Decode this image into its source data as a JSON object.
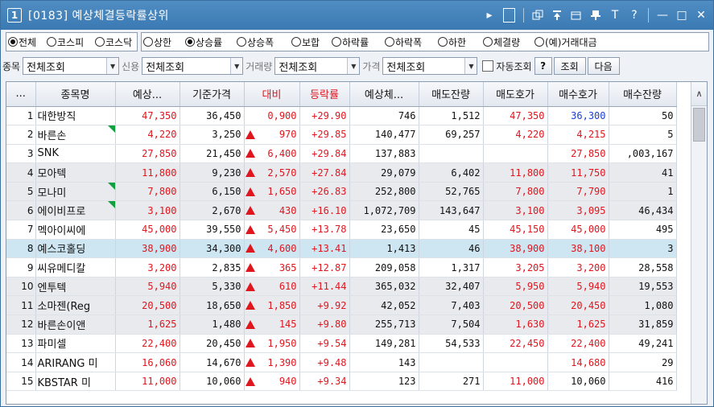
{
  "title": {
    "badge": "1",
    "text": "[0183]  예상체결등락률상위"
  },
  "title_tools": [
    "▸",
    "T",
    "?",
    "—",
    "□",
    "✕"
  ],
  "radio_groups": [
    [
      {
        "label": "전체",
        "checked": true
      },
      {
        "label": "코스피",
        "checked": false
      },
      {
        "label": "코스닥",
        "checked": false
      }
    ],
    [
      {
        "label": "상한",
        "checked": false
      },
      {
        "label": "상승률",
        "checked": true
      },
      {
        "label": "상승폭",
        "checked": false
      },
      {
        "label": "보합",
        "checked": false
      },
      {
        "label": "하락률",
        "checked": false
      },
      {
        "label": "하락폭",
        "checked": false
      },
      {
        "label": "하한",
        "checked": false
      },
      {
        "label": "체결량",
        "checked": false
      },
      {
        "label": "(예)거래대금",
        "checked": false
      }
    ]
  ],
  "filters": {
    "item_label": "종목",
    "item_value": "전체조회",
    "credit_label": "신용",
    "credit_value": "전체조회",
    "volume_label": "거래량",
    "volume_value": "전체조회",
    "price_label": "가격",
    "price_value": "전체조회",
    "auto_label": "자동조회",
    "help_button": "?",
    "search_button": "조회",
    "next_button": "다음"
  },
  "table": {
    "headers": [
      "...",
      "종목명",
      "예상...",
      "기준가격",
      "대비",
      "등락률",
      "예상체...",
      "매도잔량",
      "매도호가",
      "매수호가",
      "매수잔량"
    ],
    "rows": [
      {
        "no": "1",
        "name": "대한방직",
        "exp": "47,350",
        "base": "36,450",
        "diff": "0,900",
        "up": false,
        "rate": "+29.90",
        "vol": "746",
        "askq": "1,512",
        "ask": "47,350",
        "bid": "36,300",
        "bidq": "50",
        "flag": false,
        "bg": "white",
        "bid_color": "blue"
      },
      {
        "no": "2",
        "name": "바른손",
        "exp": "4,220",
        "base": "3,250",
        "diff": "970",
        "up": true,
        "rate": "+29.85",
        "vol": "140,477",
        "askq": "69,257",
        "ask": "4,220",
        "bid": "4,215",
        "bidq": "5",
        "flag": true,
        "bg": "white",
        "bid_color": "red"
      },
      {
        "no": "3",
        "name": "SNK",
        "exp": "27,850",
        "base": "21,450",
        "diff": "6,400",
        "up": true,
        "rate": "+29.84",
        "vol": "137,883",
        "askq": "",
        "ask": "",
        "bid": "27,850",
        "bidq": ",003,167",
        "flag": false,
        "bg": "white",
        "bid_color": "red"
      },
      {
        "no": "4",
        "name": "모아텍",
        "exp": "11,800",
        "base": "9,230",
        "diff": "2,570",
        "up": true,
        "rate": "+27.84",
        "vol": "29,079",
        "askq": "6,402",
        "ask": "11,800",
        "bid": "11,750",
        "bidq": "41",
        "flag": false,
        "bg": "gray",
        "bid_color": "red"
      },
      {
        "no": "5",
        "name": "모나미",
        "exp": "7,800",
        "base": "6,150",
        "diff": "1,650",
        "up": true,
        "rate": "+26.83",
        "vol": "252,800",
        "askq": "52,765",
        "ask": "7,800",
        "bid": "7,790",
        "bidq": "1",
        "flag": true,
        "bg": "gray",
        "bid_color": "red"
      },
      {
        "no": "6",
        "name": "에이비프로",
        "exp": "3,100",
        "base": "2,670",
        "diff": "430",
        "up": true,
        "rate": "+16.10",
        "vol": "1,072,709",
        "askq": "143,647",
        "ask": "3,100",
        "bid": "3,095",
        "bidq": "46,434",
        "flag": true,
        "bg": "gray",
        "bid_color": "red"
      },
      {
        "no": "7",
        "name": "멕아이씨에",
        "exp": "45,000",
        "base": "39,550",
        "diff": "5,450",
        "up": true,
        "rate": "+13.78",
        "vol": "23,650",
        "askq": "45",
        "ask": "45,150",
        "bid": "45,000",
        "bidq": "495",
        "flag": false,
        "bg": "white",
        "bid_color": "red"
      },
      {
        "no": "8",
        "name": "예스코홀딩",
        "exp": "38,900",
        "base": "34,300",
        "diff": "4,600",
        "up": true,
        "rate": "+13.41",
        "vol": "1,413",
        "askq": "46",
        "ask": "38,900",
        "bid": "38,100",
        "bidq": "3",
        "flag": false,
        "bg": "sel",
        "bid_color": "red"
      },
      {
        "no": "9",
        "name": "씨유메디칼",
        "exp": "3,200",
        "base": "2,835",
        "diff": "365",
        "up": true,
        "rate": "+12.87",
        "vol": "209,058",
        "askq": "1,317",
        "ask": "3,205",
        "bid": "3,200",
        "bidq": "28,558",
        "flag": false,
        "bg": "white",
        "bid_color": "red"
      },
      {
        "no": "10",
        "name": "엔투텍",
        "exp": "5,940",
        "base": "5,330",
        "diff": "610",
        "up": true,
        "rate": "+11.44",
        "vol": "365,032",
        "askq": "32,407",
        "ask": "5,950",
        "bid": "5,940",
        "bidq": "19,553",
        "flag": false,
        "bg": "gray",
        "bid_color": "red"
      },
      {
        "no": "11",
        "name": "소마젠(Reg",
        "exp": "20,500",
        "base": "18,650",
        "diff": "1,850",
        "up": true,
        "rate": "+9.92",
        "vol": "42,052",
        "askq": "7,403",
        "ask": "20,500",
        "bid": "20,450",
        "bidq": "1,080",
        "flag": false,
        "bg": "gray",
        "bid_color": "red"
      },
      {
        "no": "12",
        "name": "바른손이앤",
        "exp": "1,625",
        "base": "1,480",
        "diff": "145",
        "up": true,
        "rate": "+9.80",
        "vol": "255,713",
        "askq": "7,504",
        "ask": "1,630",
        "bid": "1,625",
        "bidq": "31,859",
        "flag": false,
        "bg": "gray",
        "bid_color": "red"
      },
      {
        "no": "13",
        "name": "파미셀",
        "exp": "22,400",
        "base": "20,450",
        "diff": "1,950",
        "up": true,
        "rate": "+9.54",
        "vol": "149,281",
        "askq": "54,533",
        "ask": "22,450",
        "bid": "22,400",
        "bidq": "49,241",
        "flag": false,
        "bg": "white",
        "bid_color": "red"
      },
      {
        "no": "14",
        "name": "ARIRANG 미",
        "exp": "16,060",
        "base": "14,670",
        "diff": "1,390",
        "up": true,
        "rate": "+9.48",
        "vol": "143",
        "askq": "",
        "ask": "",
        "bid": "14,680",
        "bidq": "29",
        "flag": false,
        "bg": "white",
        "bid_color": "red"
      },
      {
        "no": "15",
        "name": "KBSTAR 미",
        "exp": "11,000",
        "base": "10,060",
        "diff": "940",
        "up": true,
        "rate": "+9.34",
        "vol": "123",
        "askq": "271",
        "ask": "11,000",
        "bid": "10,060",
        "bidq": "416",
        "flag": false,
        "bg": "white",
        "bid_color": "black"
      }
    ]
  },
  "colors": {
    "up": "#e0161e",
    "bid_blue": "#1a3fd6",
    "title_bar": "#3b79b3",
    "selected_row": "#cde6f2",
    "gray_row": "#e9eaed"
  },
  "icons": [
    "screen-number-icon",
    "play-icon",
    "memo-icon",
    "new-window-icon",
    "pin-top-icon",
    "copy-window-icon",
    "pin-icon",
    "font-icon",
    "help-icon",
    "minimize-icon",
    "maximize-icon",
    "close-icon",
    "scroll-up-icon"
  ]
}
